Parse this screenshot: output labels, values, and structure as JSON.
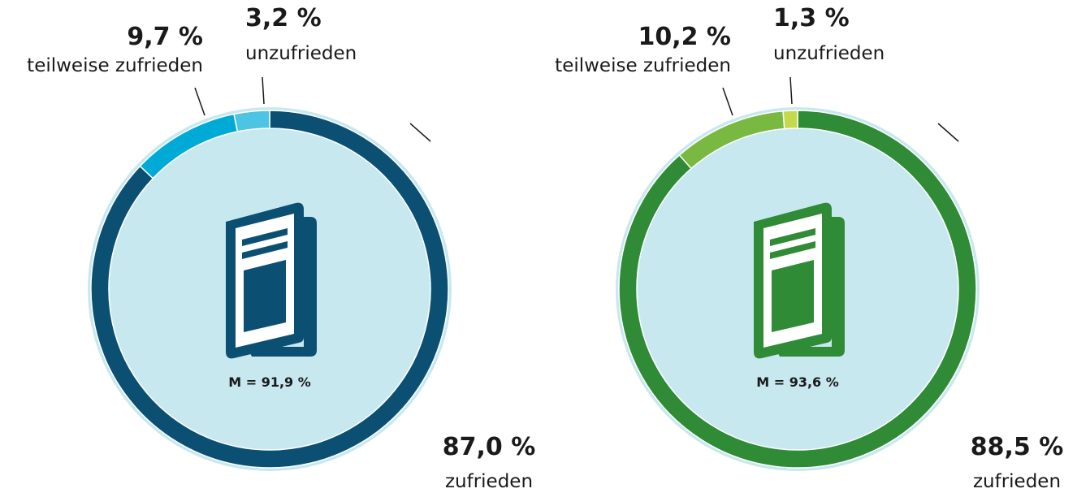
{
  "chart_data": [
    {
      "type": "pie",
      "categories": [
        "zufrieden",
        "teilweise zufrieden",
        "unzufrieden"
      ],
      "values": [
        87.0,
        9.7,
        3.2
      ],
      "value_labels": [
        "87,0 %",
        "9,7 %",
        "3,2 %"
      ],
      "colors": [
        "#0b5073",
        "#00aad7",
        "#4ec4e4"
      ],
      "annotation": "M = 91,9 %"
    },
    {
      "type": "pie",
      "categories": [
        "zufrieden",
        "teilweise zufrieden",
        "unzufrieden"
      ],
      "values": [
        88.5,
        10.2,
        1.3
      ],
      "value_labels": [
        "88,5 %",
        "10,2 %",
        "1,3 %"
      ],
      "colors": [
        "#2f8b35",
        "#7ab941",
        "#c4d94b"
      ],
      "annotation": "M = 93,6 %"
    }
  ]
}
